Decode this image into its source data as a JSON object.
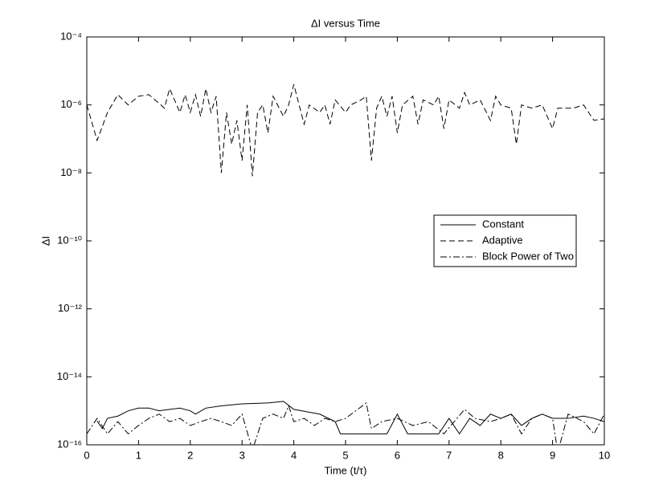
{
  "chart_data": {
    "type": "line",
    "title": "ΔI versus Time",
    "xlabel": "Time (t/τ)",
    "ylabel": "ΔI",
    "xlim": [
      0,
      10
    ],
    "xticks": [
      0,
      1,
      2,
      3,
      4,
      5,
      6,
      7,
      8,
      9,
      10
    ],
    "ylim": [
      1e-16,
      0.0001
    ],
    "yscale": "log",
    "yticks": [
      {
        "value": 1e-16,
        "label": "10⁻¹⁶"
      },
      {
        "value": 1e-14,
        "label": "10⁻¹⁴"
      },
      {
        "value": 1e-12,
        "label": "10⁻¹²"
      },
      {
        "value": 1e-10,
        "label": "10⁻¹⁰"
      },
      {
        "value": 1e-08,
        "label": "10⁻⁸"
      },
      {
        "value": 1e-06,
        "label": "10⁻⁶"
      },
      {
        "value": 0.0001,
        "label": "10⁻⁴"
      }
    ],
    "grid": false,
    "legend_position": "east",
    "series": [
      {
        "name": "Constant",
        "color": "#000000",
        "linestyle": "solid",
        "x": [
          0.2,
          0.3,
          0.4,
          0.6,
          0.8,
          1.0,
          1.2,
          1.4,
          1.6,
          1.8,
          2.0,
          2.1,
          2.3,
          2.6,
          3.0,
          3.5,
          3.8,
          4.0,
          4.5,
          4.8,
          4.9,
          5.4,
          5.8,
          6.0,
          6.2,
          6.5,
          6.8,
          7.0,
          7.2,
          7.4,
          7.6,
          7.8,
          8.0,
          8.2,
          8.4,
          8.6,
          8.8,
          9.0,
          9.3,
          9.6,
          9.8,
          10
        ],
        "values": [
          5e-16,
          3e-16,
          6e-16,
          7e-16,
          1e-15,
          1.2e-15,
          1.2e-15,
          1e-15,
          1.1e-15,
          1.2e-15,
          1e-15,
          8e-16,
          1.2e-15,
          1.4e-15,
          1.6e-15,
          1.7e-15,
          1.9e-15,
          1.1e-15,
          8e-16,
          4.8e-16,
          2.1e-16,
          2.1e-16,
          2.1e-16,
          8e-16,
          2.1e-16,
          2.1e-16,
          2.1e-16,
          6e-16,
          2.1e-16,
          6e-16,
          3.7e-16,
          8e-16,
          6e-16,
          8e-16,
          3.7e-16,
          6e-16,
          8e-16,
          6e-16,
          6e-16,
          7e-16,
          6e-16,
          4.8e-16
        ]
      },
      {
        "name": "Adaptive",
        "color": "#000000",
        "linestyle": "dashed",
        "x": [
          0,
          0.2,
          0.4,
          0.6,
          0.8,
          1.0,
          1.2,
          1.4,
          1.5,
          1.6,
          1.8,
          1.9,
          2.0,
          2.1,
          2.2,
          2.3,
          2.4,
          2.5,
          2.6,
          2.7,
          2.8,
          2.9,
          3.0,
          3.1,
          3.2,
          3.3,
          3.4,
          3.5,
          3.6,
          3.8,
          3.9,
          4.0,
          4.2,
          4.3,
          4.5,
          4.6,
          4.7,
          4.8,
          5.0,
          5.1,
          5.3,
          5.4,
          5.5,
          5.6,
          5.7,
          5.8,
          5.9,
          6.0,
          6.1,
          6.3,
          6.4,
          6.5,
          6.7,
          6.8,
          6.9,
          7.0,
          7.2,
          7.3,
          7.4,
          7.6,
          7.8,
          7.9,
          8.0,
          8.2,
          8.3,
          8.4,
          8.6,
          8.8,
          9.0,
          9.1,
          9.4,
          9.6,
          9.8,
          10
        ],
        "values": [
          1e-06,
          9e-08,
          6e-07,
          2e-06,
          1e-06,
          1.8e-06,
          2e-06,
          1.1e-06,
          8e-07,
          3e-06,
          6e-07,
          2e-06,
          6e-07,
          2e-06,
          4.6e-07,
          3e-06,
          6e-07,
          1.8e-06,
          1e-08,
          6e-07,
          7e-08,
          3.5e-07,
          2.3e-08,
          1e-06,
          8e-09,
          6e-07,
          1e-06,
          1.5e-07,
          1.8e-06,
          4.6e-07,
          1e-06,
          4e-06,
          2.7e-07,
          1e-06,
          6e-07,
          1e-06,
          2.7e-07,
          1.4e-06,
          6e-07,
          1e-06,
          1.4e-06,
          1.8e-06,
          2.3e-08,
          8e-07,
          1.8e-06,
          4.6e-07,
          1.8e-06,
          1.5e-07,
          1e-06,
          1.8e-06,
          2.7e-07,
          1.4e-06,
          1e-06,
          1.8e-06,
          2e-07,
          1.4e-06,
          8e-07,
          2.3e-06,
          1e-06,
          1.4e-06,
          3.5e-07,
          1.8e-06,
          1e-06,
          8e-07,
          7e-08,
          1e-06,
          8e-07,
          1e-06,
          2e-07,
          8e-07,
          8e-07,
          1e-06,
          3.5e-07,
          3.9e-07
        ]
      },
      {
        "name": "Block Power of Two",
        "color": "#000000",
        "linestyle": "dashdot",
        "x": [
          0,
          0.2,
          0.4,
          0.6,
          0.8,
          1.0,
          1.2,
          1.4,
          1.6,
          1.8,
          2.0,
          2.2,
          2.4,
          2.6,
          2.8,
          3.0,
          3.2,
          3.4,
          3.6,
          3.8,
          3.9,
          4.0,
          4.2,
          4.4,
          4.6,
          4.8,
          5.0,
          5.4,
          5.5,
          5.7,
          6.0,
          6.3,
          6.6,
          6.9,
          7.1,
          7.3,
          7.5,
          7.8,
          8.0,
          8.2,
          8.4,
          8.6,
          8.8,
          9.0,
          9.1,
          9.3,
          9.6,
          9.8,
          10
        ],
        "values": [
          2.1e-16,
          6e-16,
          2.1e-16,
          4.8e-16,
          2.1e-16,
          3.7e-16,
          6e-16,
          8e-16,
          4.8e-16,
          6e-16,
          3.7e-16,
          4.8e-16,
          6e-16,
          4.8e-16,
          3.7e-16,
          8e-16,
          7e-17,
          6e-16,
          8e-16,
          6e-16,
          1.4e-15,
          4.8e-16,
          6e-16,
          3.7e-16,
          6e-16,
          4.8e-16,
          6e-16,
          1.7e-15,
          3e-16,
          4.8e-16,
          6e-16,
          3.7e-16,
          4.8e-16,
          2.1e-16,
          4.8e-16,
          1.1e-15,
          6e-16,
          4.8e-16,
          6e-16,
          8e-16,
          2.1e-16,
          6e-16,
          8e-16,
          6e-16,
          6e-17,
          8e-16,
          4.8e-16,
          2.1e-16,
          8e-16
        ]
      }
    ]
  }
}
